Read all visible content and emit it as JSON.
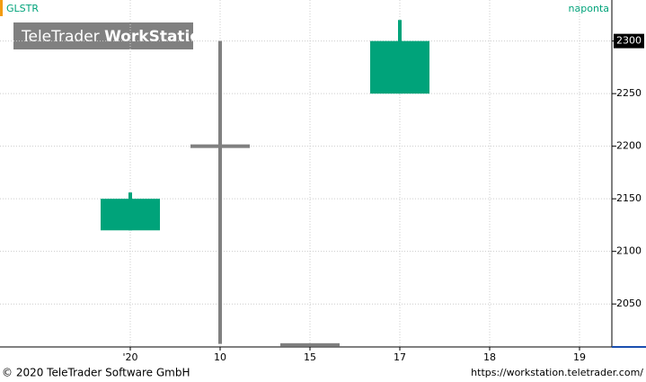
{
  "symbol": "GLSTR",
  "period": "naponta",
  "watermark": {
    "brand": "TeleTrader",
    "product": "WorkStation"
  },
  "footer": {
    "copyright": "© 2020 TeleTrader Software GmbH",
    "url": "https://workstation.teletrader.com/"
  },
  "chart_data": {
    "type": "candlestick",
    "categories": [
      "'20",
      "10",
      "15",
      "17",
      "18",
      "19"
    ],
    "open": [
      2120,
      2200,
      2011,
      2250,
      null,
      null
    ],
    "high": [
      2156,
      2300,
      2011,
      2320,
      null,
      null
    ],
    "low": [
      2120,
      2012,
      2011,
      2250,
      null,
      null
    ],
    "close": [
      2150,
      2200,
      2011,
      2300,
      null,
      null
    ],
    "up_color": "#00a37a",
    "flat_color": "#808080",
    "ylim": [
      2010,
      2339
    ],
    "yticks": [
      2050,
      2100,
      2150,
      2200,
      2250,
      2300
    ],
    "grid": true,
    "last_price_marker": true
  }
}
